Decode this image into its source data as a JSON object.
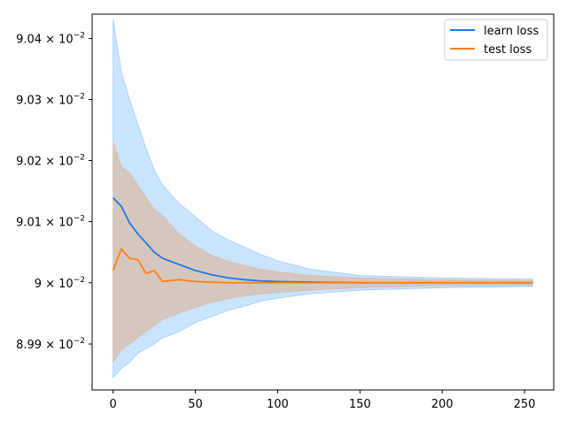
{
  "chart_data": {
    "type": "line",
    "title": "",
    "xlabel": "",
    "ylabel": "",
    "y_scale": "log",
    "xlim": [
      -12.75,
      267.75
    ],
    "ylim": [
      0.089825,
      0.09044
    ],
    "grid": false,
    "legend_position": "top-right",
    "x_ticks": [
      {
        "value": 0,
        "label": "0"
      },
      {
        "value": 50,
        "label": "50"
      },
      {
        "value": 100,
        "label": "100"
      },
      {
        "value": 150,
        "label": "150"
      },
      {
        "value": 200,
        "label": "200"
      },
      {
        "value": 250,
        "label": "250"
      }
    ],
    "y_ticks": [
      {
        "value": 0.0899,
        "mantissa": "8.99",
        "base": "10",
        "exponent": "−2"
      },
      {
        "value": 0.09,
        "mantissa": "9",
        "base": "10",
        "exponent": "−2"
      },
      {
        "value": 0.0901,
        "mantissa": "9.01",
        "base": "10",
        "exponent": "−2"
      },
      {
        "value": 0.0902,
        "mantissa": "9.02",
        "base": "10",
        "exponent": "−2"
      },
      {
        "value": 0.0903,
        "mantissa": "9.03",
        "base": "10",
        "exponent": "−2"
      },
      {
        "value": 0.0904,
        "mantissa": "9.04",
        "base": "10",
        "exponent": "−2"
      }
    ],
    "x": [
      0,
      5,
      10,
      15,
      20,
      25,
      30,
      40,
      50,
      60,
      70,
      80,
      90,
      100,
      120,
      150,
      200,
      255
    ],
    "series": [
      {
        "name": "learn loss",
        "color": "#1f77e8",
        "band_color": "#9fcdff",
        "values": [
          0.090139,
          0.090125,
          0.090098,
          0.09008,
          0.090065,
          0.09005,
          0.09004,
          0.09003,
          0.09002,
          0.090013,
          0.090008,
          0.090005,
          0.090003,
          0.090002,
          0.090001,
          0.09,
          0.09,
          0.09
        ],
        "upper": [
          0.090432,
          0.090345,
          0.0903,
          0.09026,
          0.09022,
          0.090185,
          0.09016,
          0.09013,
          0.090108,
          0.090085,
          0.09007,
          0.090058,
          0.090046,
          0.090036,
          0.090022,
          0.090012,
          0.090008,
          0.090006
        ],
        "lower": [
          0.089845,
          0.08986,
          0.08987,
          0.089885,
          0.089892,
          0.0899,
          0.08991,
          0.08992,
          0.089935,
          0.089945,
          0.089955,
          0.089962,
          0.08997,
          0.089975,
          0.089982,
          0.089988,
          0.089992,
          0.089994
        ]
      },
      {
        "name": "test loss",
        "color": "#ff7f0e",
        "band_color": "#d9bda8",
        "values": [
          0.09002,
          0.090055,
          0.09004,
          0.090038,
          0.090015,
          0.09002,
          0.090002,
          0.090005,
          0.090002,
          0.090001,
          0.09,
          0.09,
          0.09,
          0.09,
          0.09,
          0.09,
          0.09,
          0.09
        ],
        "upper": [
          0.09023,
          0.09019,
          0.09018,
          0.09016,
          0.09014,
          0.09012,
          0.09011,
          0.09008,
          0.09006,
          0.090045,
          0.090035,
          0.090028,
          0.090022,
          0.090018,
          0.090012,
          0.090008,
          0.090005,
          0.090004
        ],
        "lower": [
          0.08987,
          0.08989,
          0.0899,
          0.08991,
          0.08992,
          0.08993,
          0.08994,
          0.08995,
          0.08996,
          0.089968,
          0.089974,
          0.089978,
          0.089982,
          0.089984,
          0.089988,
          0.089992,
          0.089995,
          0.089996
        ]
      }
    ]
  }
}
